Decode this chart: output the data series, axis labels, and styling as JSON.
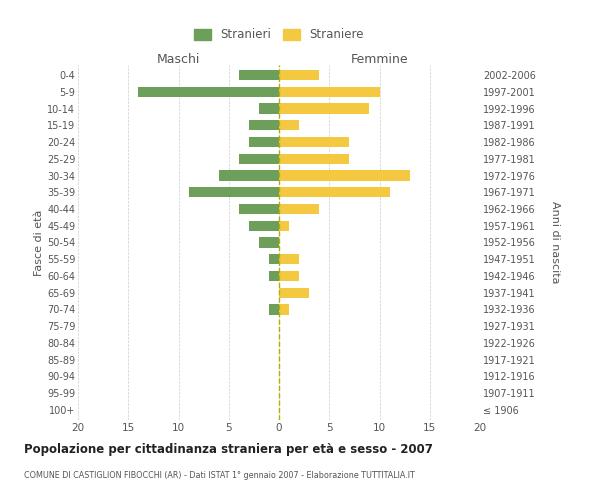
{
  "age_groups": [
    "0-4",
    "5-9",
    "10-14",
    "15-19",
    "20-24",
    "25-29",
    "30-34",
    "35-39",
    "40-44",
    "45-49",
    "50-54",
    "55-59",
    "60-64",
    "65-69",
    "70-74",
    "75-79",
    "80-84",
    "85-89",
    "90-94",
    "95-99",
    "100+"
  ],
  "birth_years": [
    "2002-2006",
    "1997-2001",
    "1992-1996",
    "1987-1991",
    "1982-1986",
    "1977-1981",
    "1972-1976",
    "1967-1971",
    "1962-1966",
    "1957-1961",
    "1952-1956",
    "1947-1951",
    "1942-1946",
    "1937-1941",
    "1932-1936",
    "1927-1931",
    "1922-1926",
    "1917-1921",
    "1912-1916",
    "1907-1911",
    "≤ 1906"
  ],
  "males": [
    4,
    14,
    2,
    3,
    3,
    4,
    6,
    9,
    4,
    3,
    2,
    1,
    1,
    0,
    1,
    0,
    0,
    0,
    0,
    0,
    0
  ],
  "females": [
    4,
    10,
    9,
    2,
    7,
    7,
    13,
    11,
    4,
    1,
    0,
    2,
    2,
    3,
    1,
    0,
    0,
    0,
    0,
    0,
    0
  ],
  "male_color": "#6d9e5a",
  "female_color": "#f5c842",
  "center_line_color": "#b0b000",
  "grid_color": "#cccccc",
  "title": "Popolazione per cittadinanza straniera per età e sesso - 2007",
  "subtitle": "COMUNE DI CASTIGLION FIBOCCHI (AR) - Dati ISTAT 1° gennaio 2007 - Elaborazione TUTTITALIA.IT",
  "ylabel_left": "Fasce di età",
  "ylabel_right": "Anni di nascita",
  "xlabel_max": 20,
  "legend_stranieri": "Stranieri",
  "legend_straniere": "Straniere",
  "maschi_label": "Maschi",
  "femmine_label": "Femmine",
  "background_color": "#ffffff",
  "text_color": "#555555"
}
